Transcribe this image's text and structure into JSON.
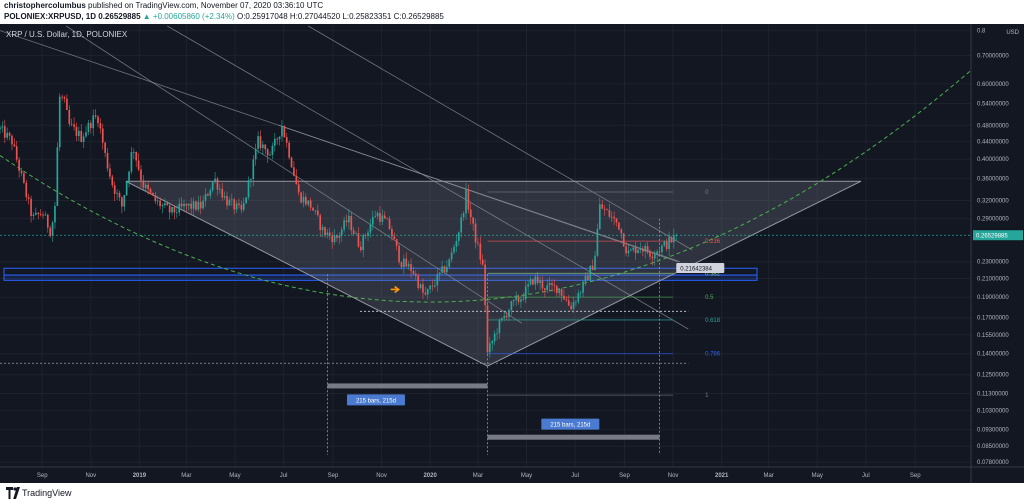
{
  "header": {
    "author": "christophercolumbus",
    "published": "published on TradingView.com, November 07, 2020 03:36:10 UTC",
    "symbol": "POLONIEX:XRPUSD, 1D",
    "price": "0.26529885",
    "change": "▲ +0.00605860 (+2.34%)",
    "open": "O:0.25917048",
    "high": "H:0.27044520",
    "low": "L:0.25823351",
    "close": "C:0.26529885"
  },
  "footer": {
    "brand": "TradingView"
  },
  "colors": {
    "background": "#131722",
    "candle_up": "#26a69a",
    "candle_down": "#ef5350",
    "curve": "#4caf50",
    "triangle_fill": "#7b7f8c",
    "zone": "#2962ff",
    "price_label": "#26a69a",
    "measure_label": "#4a7bd0"
  },
  "chart_data": {
    "type": "candlestick",
    "title": "XRP / U.S. Dollar, 1D, POLONIEX",
    "currency": "USD",
    "y_scale": "log",
    "ylim": [
      0.076,
      0.82
    ],
    "y_ticks": [
      0.8,
      0.7,
      0.6,
      0.54,
      0.48,
      0.44,
      0.4,
      0.36,
      0.32,
      0.29,
      0.23,
      0.21,
      0.19,
      0.17,
      0.155,
      0.14,
      0.125,
      0.113,
      0.103,
      0.093,
      0.085,
      0.078
    ],
    "y_tick_labels": [
      "0.8",
      "0.70000000",
      "0.60000000",
      "0.54000000",
      "0.48000000",
      "0.44000000",
      "0.40000000",
      "0.36000000",
      "0.32000000",
      "0.29000000",
      "0.23000000",
      "0.21000000",
      "0.19000000",
      "0.17000000",
      "0.15500000",
      "0.14000000",
      "0.12500000",
      "0.11300000",
      "0.10300000",
      "0.09300000",
      "0.08500000",
      "0.07800000"
    ],
    "x_range": [
      "2018-07-10",
      "2021-11-10"
    ],
    "x_ticks": [
      {
        "date": "2018-09-01",
        "label": "Sep"
      },
      {
        "date": "2018-11-01",
        "label": "Nov"
      },
      {
        "date": "2019-01-01",
        "label": "2019"
      },
      {
        "date": "2019-03-01",
        "label": "Mar"
      },
      {
        "date": "2019-05-01",
        "label": "May"
      },
      {
        "date": "2019-07-01",
        "label": "Jul"
      },
      {
        "date": "2019-09-01",
        "label": "Sep"
      },
      {
        "date": "2019-11-01",
        "label": "Nov"
      },
      {
        "date": "2020-01-01",
        "label": "2020"
      },
      {
        "date": "2020-03-01",
        "label": "Mar"
      },
      {
        "date": "2020-05-01",
        "label": "May"
      },
      {
        "date": "2020-07-01",
        "label": "Jul"
      },
      {
        "date": "2020-09-01",
        "label": "Sep"
      },
      {
        "date": "2020-11-01",
        "label": "Nov"
      },
      {
        "date": "2021-01-01",
        "label": "2021"
      },
      {
        "date": "2021-03-01",
        "label": "Mar"
      },
      {
        "date": "2021-05-01",
        "label": "May"
      },
      {
        "date": "2021-07-01",
        "label": "Jul"
      },
      {
        "date": "2021-09-01",
        "label": "Sep"
      }
    ],
    "price_path": [
      [
        "2018-07-10",
        0.47
      ],
      [
        "2018-07-25",
        0.44
      ],
      [
        "2018-08-10",
        0.34
      ],
      [
        "2018-08-20",
        0.29
      ],
      [
        "2018-09-01",
        0.3
      ],
      [
        "2018-09-12",
        0.27
      ],
      [
        "2018-09-18",
        0.32
      ],
      [
        "2018-09-22",
        0.56
      ],
      [
        "2018-09-28",
        0.55
      ],
      [
        "2018-10-05",
        0.48
      ],
      [
        "2018-10-20",
        0.45
      ],
      [
        "2018-11-05",
        0.5
      ],
      [
        "2018-11-10",
        0.5
      ],
      [
        "2018-11-20",
        0.4
      ],
      [
        "2018-11-28",
        0.35
      ],
      [
        "2018-12-10",
        0.31
      ],
      [
        "2018-12-24",
        0.43
      ],
      [
        "2019-01-05",
        0.35
      ],
      [
        "2019-01-20",
        0.32
      ],
      [
        "2019-02-10",
        0.3
      ],
      [
        "2019-02-28",
        0.31
      ],
      [
        "2019-03-20",
        0.31
      ],
      [
        "2019-04-05",
        0.36
      ],
      [
        "2019-04-20",
        0.32
      ],
      [
        "2019-05-10",
        0.3
      ],
      [
        "2019-05-30",
        0.44
      ],
      [
        "2019-06-15",
        0.41
      ],
      [
        "2019-06-29",
        0.48
      ],
      [
        "2019-07-10",
        0.4
      ],
      [
        "2019-07-20",
        0.33
      ],
      [
        "2019-08-05",
        0.31
      ],
      [
        "2019-08-20",
        0.27
      ],
      [
        "2019-09-05",
        0.26
      ],
      [
        "2019-09-20",
        0.29
      ],
      [
        "2019-10-05",
        0.25
      ],
      [
        "2019-10-25",
        0.3
      ],
      [
        "2019-11-10",
        0.28
      ],
      [
        "2019-11-25",
        0.23
      ],
      [
        "2019-12-10",
        0.22
      ],
      [
        "2019-12-25",
        0.19
      ],
      [
        "2020-01-10",
        0.21
      ],
      [
        "2020-01-25",
        0.23
      ],
      [
        "2020-02-08",
        0.28
      ],
      [
        "2020-02-15",
        0.33
      ],
      [
        "2020-02-25",
        0.27
      ],
      [
        "2020-03-08",
        0.22
      ],
      [
        "2020-03-13",
        0.14
      ],
      [
        "2020-03-25",
        0.16
      ],
      [
        "2020-04-10",
        0.18
      ],
      [
        "2020-04-25",
        0.19
      ],
      [
        "2020-05-10",
        0.21
      ],
      [
        "2020-05-25",
        0.2
      ],
      [
        "2020-06-10",
        0.2
      ],
      [
        "2020-06-25",
        0.18
      ],
      [
        "2020-07-10",
        0.2
      ],
      [
        "2020-07-25",
        0.23
      ],
      [
        "2020-08-01",
        0.31
      ],
      [
        "2020-08-10",
        0.3
      ],
      [
        "2020-08-25",
        0.28
      ],
      [
        "2020-09-05",
        0.24
      ],
      [
        "2020-09-20",
        0.25
      ],
      [
        "2020-10-05",
        0.24
      ],
      [
        "2020-10-20",
        0.25
      ],
      [
        "2020-11-07",
        0.265
      ]
    ]
  },
  "annotations": {
    "current_price_label": "0.26529885",
    "hover_price_label": "0.21642384",
    "fib_levels": [
      {
        "label": "0",
        "price": 0.335
      },
      {
        "label": "0.236",
        "price": 0.257
      },
      {
        "label": "0.382",
        "price": 0.216
      },
      {
        "label": "0.5",
        "price": 0.19
      },
      {
        "label": "0.618",
        "price": 0.168
      },
      {
        "label": "0.786",
        "price": 0.14
      },
      {
        "label": "1",
        "price": 0.112
      }
    ],
    "measure_1": "215 bars, 215d",
    "measure_2": "215 bars, 215d"
  }
}
